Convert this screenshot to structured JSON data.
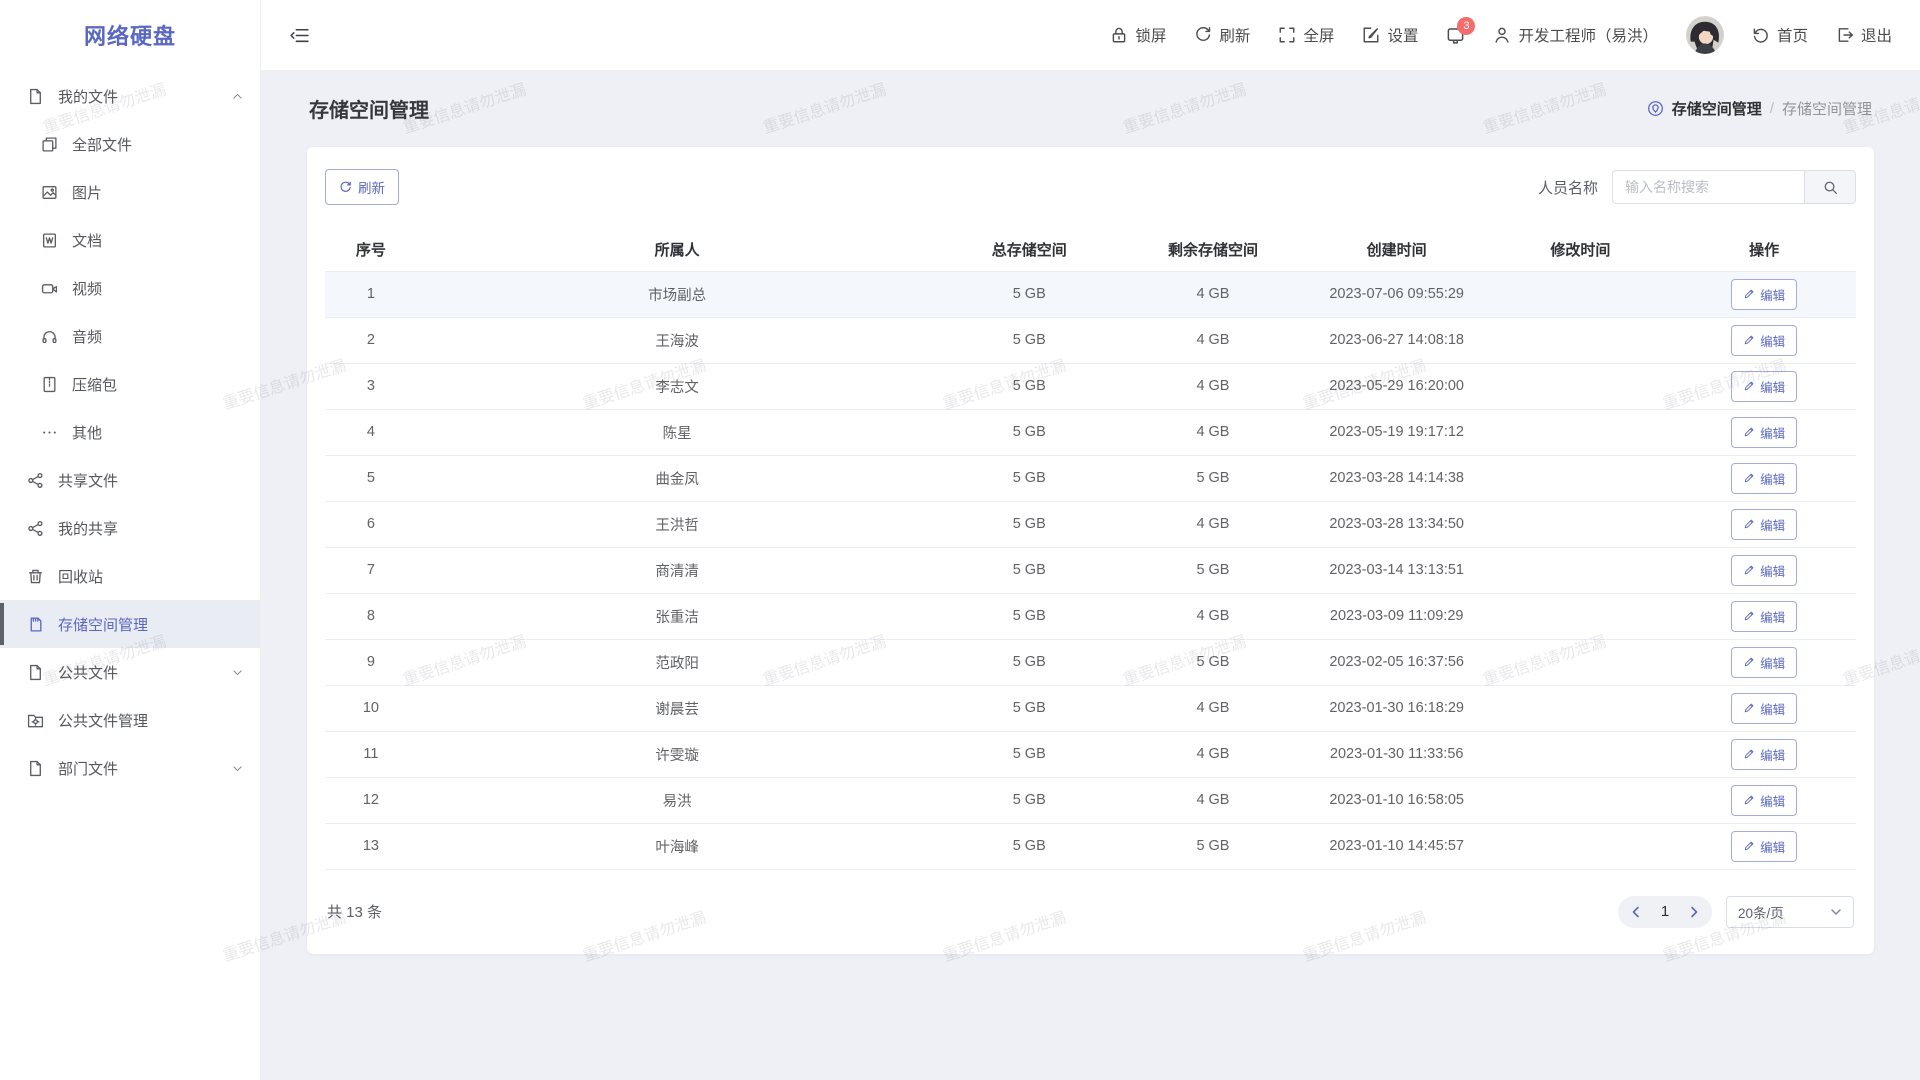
{
  "app_title": "网络硬盘",
  "watermark_text": "重要信息请勿泄漏",
  "header": {
    "actions": [
      {
        "icon": "lock-icon",
        "label": "锁屏"
      },
      {
        "icon": "refresh-icon",
        "label": "刷新"
      },
      {
        "icon": "fullscreen-icon",
        "label": "全屏"
      },
      {
        "icon": "edit-square-icon",
        "label": "设置"
      }
    ],
    "notification_count": "3",
    "user_label": "开发工程师（易洪）",
    "home_label": "首页",
    "logout_label": "退出"
  },
  "sidebar": {
    "items": [
      {
        "label": "我的文件",
        "icon": "document-icon",
        "chevron": "up",
        "level": 0
      },
      {
        "label": "全部文件",
        "icon": "files-icon",
        "level": 1
      },
      {
        "label": "图片",
        "icon": "image-icon",
        "level": 1
      },
      {
        "label": "文档",
        "icon": "doc-icon",
        "level": 1
      },
      {
        "label": "视频",
        "icon": "video-icon",
        "level": 1
      },
      {
        "label": "音频",
        "icon": "audio-icon",
        "level": 1
      },
      {
        "label": "压缩包",
        "icon": "zip-icon",
        "level": 1
      },
      {
        "label": "其他",
        "icon": "more-icon",
        "level": 1
      },
      {
        "label": "共享文件",
        "icon": "share-icon",
        "level": 0
      },
      {
        "label": "我的共享",
        "icon": "share-icon",
        "level": 0
      },
      {
        "label": "回收站",
        "icon": "trash-icon",
        "level": 0
      },
      {
        "label": "存储空间管理",
        "icon": "storage-icon",
        "level": 0,
        "active": true
      },
      {
        "label": "公共文件",
        "icon": "document-icon",
        "chevron": "down",
        "level": 0
      },
      {
        "label": "公共文件管理",
        "icon": "folder-manage-icon",
        "level": 0
      },
      {
        "label": "部门文件",
        "icon": "document-icon",
        "chevron": "down",
        "level": 0
      }
    ]
  },
  "page": {
    "title": "存储空间管理",
    "breadcrumb_root": "存储空间管理",
    "breadcrumb_separator": "/",
    "breadcrumb_current": "存储空间管理"
  },
  "toolbar": {
    "refresh_label": "刷新",
    "search_label": "人员名称",
    "search_placeholder": "输入名称搜索"
  },
  "table": {
    "columns": [
      "序号",
      "所属人",
      "总存储空间",
      "剩余存储空间",
      "创建时间",
      "修改时间",
      "操作"
    ],
    "edit_label": "编辑",
    "highlighted_row_index": 0,
    "rows": [
      {
        "no": "1",
        "owner": "市场副总",
        "total": "5 GB",
        "free": "4 GB",
        "created": "2023-07-06 09:55:29",
        "modified": ""
      },
      {
        "no": "2",
        "owner": "王海波",
        "total": "5 GB",
        "free": "4 GB",
        "created": "2023-06-27 14:08:18",
        "modified": ""
      },
      {
        "no": "3",
        "owner": "李志文",
        "total": "5 GB",
        "free": "4 GB",
        "created": "2023-05-29 16:20:00",
        "modified": ""
      },
      {
        "no": "4",
        "owner": "陈星",
        "total": "5 GB",
        "free": "4 GB",
        "created": "2023-05-19 19:17:12",
        "modified": ""
      },
      {
        "no": "5",
        "owner": "曲金凤",
        "total": "5 GB",
        "free": "5 GB",
        "created": "2023-03-28 14:14:38",
        "modified": ""
      },
      {
        "no": "6",
        "owner": "王洪哲",
        "total": "5 GB",
        "free": "4 GB",
        "created": "2023-03-28 13:34:50",
        "modified": ""
      },
      {
        "no": "7",
        "owner": "商清清",
        "total": "5 GB",
        "free": "5 GB",
        "created": "2023-03-14 13:13:51",
        "modified": ""
      },
      {
        "no": "8",
        "owner": "张重洁",
        "total": "5 GB",
        "free": "4 GB",
        "created": "2023-03-09 11:09:29",
        "modified": ""
      },
      {
        "no": "9",
        "owner": "范政阳",
        "total": "5 GB",
        "free": "5 GB",
        "created": "2023-02-05 16:37:56",
        "modified": ""
      },
      {
        "no": "10",
        "owner": "谢晨芸",
        "total": "5 GB",
        "free": "4 GB",
        "created": "2023-01-30 16:18:29",
        "modified": ""
      },
      {
        "no": "11",
        "owner": "许雯璇",
        "total": "5 GB",
        "free": "4 GB",
        "created": "2023-01-30 11:33:56",
        "modified": ""
      },
      {
        "no": "12",
        "owner": "易洪",
        "total": "5 GB",
        "free": "4 GB",
        "created": "2023-01-10 16:58:05",
        "modified": ""
      },
      {
        "no": "13",
        "owner": "叶海峰",
        "total": "5 GB",
        "free": "5 GB",
        "created": "2023-01-10 14:45:57",
        "modified": ""
      }
    ]
  },
  "pagination": {
    "total_label": "共 13 条",
    "current_page": "1",
    "page_size": "20条/页"
  },
  "colors": {
    "accent": "#5a68c2",
    "badge": "#f56c6c",
    "content_bg": "#eef0f5",
    "row_highlight": "#f4f8fc"
  }
}
